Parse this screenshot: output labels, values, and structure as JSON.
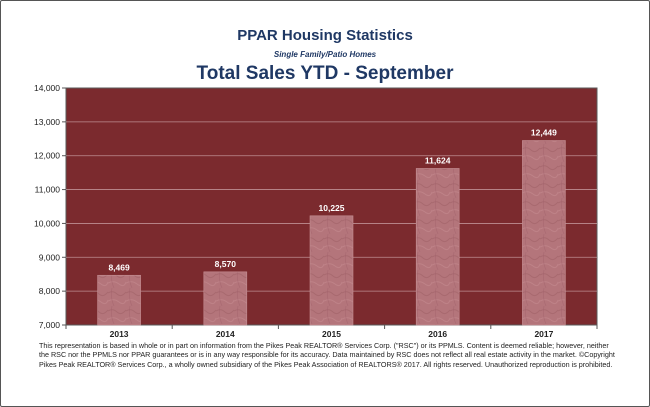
{
  "header": {
    "title": "PPAR Housing Statistics",
    "subtitle": "Single Family/Patio Homes",
    "chart_title": "Total Sales YTD - September"
  },
  "colors": {
    "plot_background": "#7b2a2e",
    "bar_fill": "#b4757b",
    "grid": "#cfa8ab",
    "title_color": "#1f3864"
  },
  "chart_data": {
    "type": "bar",
    "title": "Total Sales YTD - September",
    "categories": [
      "2013",
      "2014",
      "2015",
      "2016",
      "2017"
    ],
    "values": [
      8469,
      8570,
      10225,
      11624,
      12449
    ],
    "data_labels": [
      "8,469",
      "8,570",
      "10,225",
      "11,624",
      "12,449"
    ],
    "ylim": [
      7000,
      14000
    ],
    "yticks": [
      7000,
      8000,
      9000,
      10000,
      11000,
      12000,
      13000,
      14000
    ],
    "ytick_labels": [
      "7,000",
      "8,000",
      "9,000",
      "10,000",
      "11,000",
      "12,000",
      "13,000",
      "14,000"
    ],
    "grid": true,
    "legend": "none"
  },
  "footer": {
    "disclaimer": "This representation is based in whole or in part on information from the Pikes Peak REALTOR® Services Corp. (\"RSC\") or its PPMLS. Content is deemed reliable; however, neither the RSC nor the PPMLS nor PPAR guarantees or is in any way responsible for its accuracy. Data maintained by RSC does not reflect all real estate activity in the market. ©Copyright Pikes Peak REALTOR® Services Corp., a wholly owned subsidiary of the Pikes Peak Association of REALTORS® 2017. All rights reserved. Unauthorized reproduction is prohibited."
  }
}
